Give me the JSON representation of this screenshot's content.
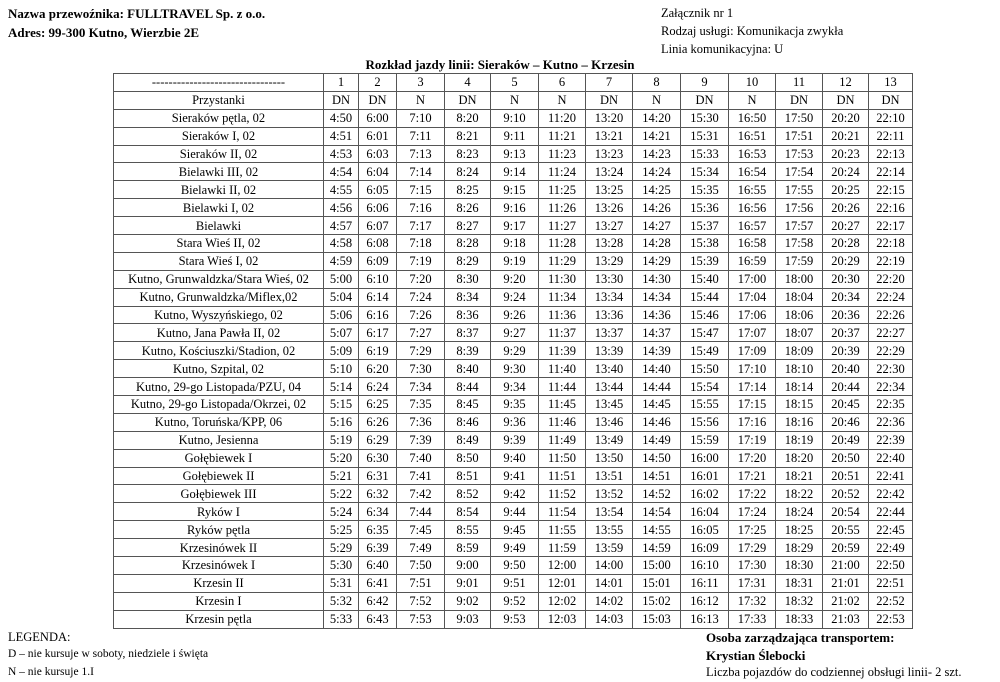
{
  "header": {
    "carrier": "Nazwa przewoźnika: FULLTRAVEL Sp. z o.o.",
    "address": "Adres: 99-300 Kutno, Wierzbie 2E",
    "attachment": "Załącznik nr 1",
    "service_type": "Rodzaj usługi: Komunikacja zwykła",
    "line": "Linia komunikacyjna: U",
    "title": "Rozkład jazdy linii: Sieraków – Kutno – Krzesin"
  },
  "table": {
    "corner": "--------------------------------",
    "stops_header": "Przystanki",
    "course_numbers": [
      "1",
      "2",
      "3",
      "4",
      "5",
      "6",
      "7",
      "8",
      "9",
      "10",
      "11",
      "12",
      "13"
    ],
    "course_marks": [
      "DN",
      "DN",
      "N",
      "DN",
      "N",
      "N",
      "DN",
      "N",
      "DN",
      "N",
      "DN",
      "DN",
      "DN"
    ],
    "rows": [
      {
        "stop": "Sieraków pętla, 02",
        "times": [
          "4:50",
          "6:00",
          "7:10",
          "8:20",
          "9:10",
          "11:20",
          "13:20",
          "14:20",
          "15:30",
          "16:50",
          "17:50",
          "20:20",
          "22:10"
        ]
      },
      {
        "stop": "Sieraków I, 02",
        "times": [
          "4:51",
          "6:01",
          "7:11",
          "8:21",
          "9:11",
          "11:21",
          "13:21",
          "14:21",
          "15:31",
          "16:51",
          "17:51",
          "20:21",
          "22:11"
        ]
      },
      {
        "stop": "Sieraków II, 02",
        "times": [
          "4:53",
          "6:03",
          "7:13",
          "8:23",
          "9:13",
          "11:23",
          "13:23",
          "14:23",
          "15:33",
          "16:53",
          "17:53",
          "20:23",
          "22:13"
        ]
      },
      {
        "stop": "Bielawki III, 02",
        "times": [
          "4:54",
          "6:04",
          "7:14",
          "8:24",
          "9:14",
          "11:24",
          "13:24",
          "14:24",
          "15:34",
          "16:54",
          "17:54",
          "20:24",
          "22:14"
        ]
      },
      {
        "stop": "Bielawki II, 02",
        "times": [
          "4:55",
          "6:05",
          "7:15",
          "8:25",
          "9:15",
          "11:25",
          "13:25",
          "14:25",
          "15:35",
          "16:55",
          "17:55",
          "20:25",
          "22:15"
        ]
      },
      {
        "stop": "Bielawki I, 02",
        "times": [
          "4:56",
          "6:06",
          "7:16",
          "8:26",
          "9:16",
          "11:26",
          "13:26",
          "14:26",
          "15:36",
          "16:56",
          "17:56",
          "20:26",
          "22:16"
        ]
      },
      {
        "stop": "Bielawki",
        "times": [
          "4:57",
          "6:07",
          "7:17",
          "8:27",
          "9:17",
          "11:27",
          "13:27",
          "14:27",
          "15:37",
          "16:57",
          "17:57",
          "20:27",
          "22:17"
        ]
      },
      {
        "stop": "Stara Wieś II, 02",
        "times": [
          "4:58",
          "6:08",
          "7:18",
          "8:28",
          "9:18",
          "11:28",
          "13:28",
          "14:28",
          "15:38",
          "16:58",
          "17:58",
          "20:28",
          "22:18"
        ]
      },
      {
        "stop": "Stara Wieś I, 02",
        "times": [
          "4:59",
          "6:09",
          "7:19",
          "8:29",
          "9:19",
          "11:29",
          "13:29",
          "14:29",
          "15:39",
          "16:59",
          "17:59",
          "20:29",
          "22:19"
        ]
      },
      {
        "stop": "Kutno, Grunwaldzka/Stara Wieś, 02",
        "times": [
          "5:00",
          "6:10",
          "7:20",
          "8:30",
          "9:20",
          "11:30",
          "13:30",
          "14:30",
          "15:40",
          "17:00",
          "18:00",
          "20:30",
          "22:20"
        ]
      },
      {
        "stop": "Kutno, Grunwaldzka/Miflex,02",
        "times": [
          "5:04",
          "6:14",
          "7:24",
          "8:34",
          "9:24",
          "11:34",
          "13:34",
          "14:34",
          "15:44",
          "17:04",
          "18:04",
          "20:34",
          "22:24"
        ]
      },
      {
        "stop": "Kutno, Wyszyńskiego, 02",
        "times": [
          "5:06",
          "6:16",
          "7:26",
          "8:36",
          "9:26",
          "11:36",
          "13:36",
          "14:36",
          "15:46",
          "17:06",
          "18:06",
          "20:36",
          "22:26"
        ]
      },
      {
        "stop": "Kutno, Jana Pawła II, 02",
        "times": [
          "5:07",
          "6:17",
          "7:27",
          "8:37",
          "9:27",
          "11:37",
          "13:37",
          "14:37",
          "15:47",
          "17:07",
          "18:07",
          "20:37",
          "22:27"
        ]
      },
      {
        "stop": "Kutno, Kościuszki/Stadion, 02",
        "times": [
          "5:09",
          "6:19",
          "7:29",
          "8:39",
          "9:29",
          "11:39",
          "13:39",
          "14:39",
          "15:49",
          "17:09",
          "18:09",
          "20:39",
          "22:29"
        ]
      },
      {
        "stop": "Kutno, Szpital, 02",
        "times": [
          "5:10",
          "6:20",
          "7:30",
          "8:40",
          "9:30",
          "11:40",
          "13:40",
          "14:40",
          "15:50",
          "17:10",
          "18:10",
          "20:40",
          "22:30"
        ]
      },
      {
        "stop": "Kutno, 29-go Listopada/PZU, 04",
        "times": [
          "5:14",
          "6:24",
          "7:34",
          "8:44",
          "9:34",
          "11:44",
          "13:44",
          "14:44",
          "15:54",
          "17:14",
          "18:14",
          "20:44",
          "22:34"
        ]
      },
      {
        "stop": "Kutno, 29-go Listopada/Okrzei, 02",
        "times": [
          "5:15",
          "6:25",
          "7:35",
          "8:45",
          "9:35",
          "11:45",
          "13:45",
          "14:45",
          "15:55",
          "17:15",
          "18:15",
          "20:45",
          "22:35"
        ]
      },
      {
        "stop": "Kutno, Toruńska/KPP, 06",
        "times": [
          "5:16",
          "6:26",
          "7:36",
          "8:46",
          "9:36",
          "11:46",
          "13:46",
          "14:46",
          "15:56",
          "17:16",
          "18:16",
          "20:46",
          "22:36"
        ]
      },
      {
        "stop": "Kutno, Jesienna",
        "times": [
          "5:19",
          "6:29",
          "7:39",
          "8:49",
          "9:39",
          "11:49",
          "13:49",
          "14:49",
          "15:59",
          "17:19",
          "18:19",
          "20:49",
          "22:39"
        ]
      },
      {
        "stop": "Gołębiewek I",
        "times": [
          "5:20",
          "6:30",
          "7:40",
          "8:50",
          "9:40",
          "11:50",
          "13:50",
          "14:50",
          "16:00",
          "17:20",
          "18:20",
          "20:50",
          "22:40"
        ]
      },
      {
        "stop": "Gołębiewek II",
        "times": [
          "5:21",
          "6:31",
          "7:41",
          "8:51",
          "9:41",
          "11:51",
          "13:51",
          "14:51",
          "16:01",
          "17:21",
          "18:21",
          "20:51",
          "22:41"
        ]
      },
      {
        "stop": "Gołębiewek III",
        "times": [
          "5:22",
          "6:32",
          "7:42",
          "8:52",
          "9:42",
          "11:52",
          "13:52",
          "14:52",
          "16:02",
          "17:22",
          "18:22",
          "20:52",
          "22:42"
        ]
      },
      {
        "stop": "Ryków I",
        "times": [
          "5:24",
          "6:34",
          "7:44",
          "8:54",
          "9:44",
          "11:54",
          "13:54",
          "14:54",
          "16:04",
          "17:24",
          "18:24",
          "20:54",
          "22:44"
        ]
      },
      {
        "stop": "Ryków pętla",
        "times": [
          "5:25",
          "6:35",
          "7:45",
          "8:55",
          "9:45",
          "11:55",
          "13:55",
          "14:55",
          "16:05",
          "17:25",
          "18:25",
          "20:55",
          "22:45"
        ]
      },
      {
        "stop": "Krzesinówek II",
        "times": [
          "5:29",
          "6:39",
          "7:49",
          "8:59",
          "9:49",
          "11:59",
          "13:59",
          "14:59",
          "16:09",
          "17:29",
          "18:29",
          "20:59",
          "22:49"
        ]
      },
      {
        "stop": "Krzesinówek I",
        "times": [
          "5:30",
          "6:40",
          "7:50",
          "9:00",
          "9:50",
          "12:00",
          "14:00",
          "15:00",
          "16:10",
          "17:30",
          "18:30",
          "21:00",
          "22:50"
        ]
      },
      {
        "stop": "Krzesin II",
        "times": [
          "5:31",
          "6:41",
          "7:51",
          "9:01",
          "9:51",
          "12:01",
          "14:01",
          "15:01",
          "16:11",
          "17:31",
          "18:31",
          "21:01",
          "22:51"
        ]
      },
      {
        "stop": "Krzesin I",
        "times": [
          "5:32",
          "6:42",
          "7:52",
          "9:02",
          "9:52",
          "12:02",
          "14:02",
          "15:02",
          "16:12",
          "17:32",
          "18:32",
          "21:02",
          "22:52"
        ]
      },
      {
        "stop": "Krzesin pętla",
        "times": [
          "5:33",
          "6:43",
          "7:53",
          "9:03",
          "9:53",
          "12:03",
          "14:03",
          "15:03",
          "16:13",
          "17:33",
          "18:33",
          "21:03",
          "22:53"
        ]
      }
    ]
  },
  "legend": {
    "title": "LEGENDA:",
    "d": "D – nie kursuje w soboty, niedziele i święta",
    "n": "N – nie kursuje 1.I"
  },
  "footer": {
    "manager_label": "Osoba zarządzająca transportem:",
    "manager_name": "Krystian Ślebocki",
    "vehicles": "Liczba pojazdów do codziennej obsługi linii- 2 szt."
  }
}
